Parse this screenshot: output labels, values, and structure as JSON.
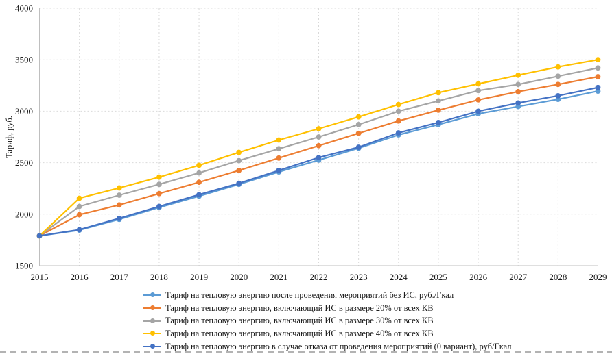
{
  "chart_data": {
    "type": "line",
    "title": "",
    "xlabel": "",
    "ylabel": "Тариф, руб.",
    "categories": [
      2015,
      2016,
      2017,
      2018,
      2019,
      2020,
      2021,
      2022,
      2023,
      2024,
      2025,
      2026,
      2027,
      2028,
      2029
    ],
    "ylim": [
      1500,
      4000
    ],
    "ytick_step": 500,
    "yticks": [
      1500,
      2000,
      2500,
      3000,
      3500,
      4000
    ],
    "grid": true,
    "gridline_style": "dotted",
    "legend_position": "bottom-left",
    "colors": {
      "axis": "#bfbfbf",
      "gridline": "#d9d9d9",
      "text": "#1a1a1a"
    },
    "series": [
      {
        "name": "Тариф на тепловую энергию после проведения мероприятий без ИС, руб./Гкал",
        "color": "#5B9BD5",
        "values": [
          1790,
          1845,
          1950,
          2065,
          2175,
          2290,
          2410,
          2525,
          2640,
          2770,
          2870,
          2975,
          3045,
          3115,
          3195
        ]
      },
      {
        "name": "Тариф на тепловую энергию, включающий ИС в размере 20% от всех КВ",
        "color": "#ED7D31",
        "values": [
          1790,
          1995,
          2090,
          2200,
          2310,
          2425,
          2545,
          2665,
          2785,
          2905,
          3010,
          3110,
          3190,
          3260,
          3335
        ]
      },
      {
        "name": "Тариф на тепловую энергию, включающий ИС в размере 30% от всех КВ",
        "color": "#A5A5A5",
        "values": [
          1790,
          2075,
          2185,
          2290,
          2400,
          2520,
          2635,
          2750,
          2870,
          3000,
          3100,
          3200,
          3260,
          3340,
          3420
        ]
      },
      {
        "name": "Тариф на тепловую энергию, включающий ИС в размере 40% от всех КВ",
        "color": "#FFC000",
        "values": [
          1790,
          2155,
          2255,
          2360,
          2475,
          2600,
          2720,
          2830,
          2945,
          3065,
          3180,
          3265,
          3350,
          3430,
          3500
        ]
      },
      {
        "name": "Тариф на тепловую энергию в случае отказа от проведения мероприятий (0 вариант), руб/Гкал",
        "color": "#4472C4",
        "values": [
          1790,
          1850,
          1960,
          2075,
          2190,
          2300,
          2425,
          2550,
          2650,
          2790,
          2890,
          3000,
          3080,
          3150,
          3230
        ]
      }
    ]
  }
}
